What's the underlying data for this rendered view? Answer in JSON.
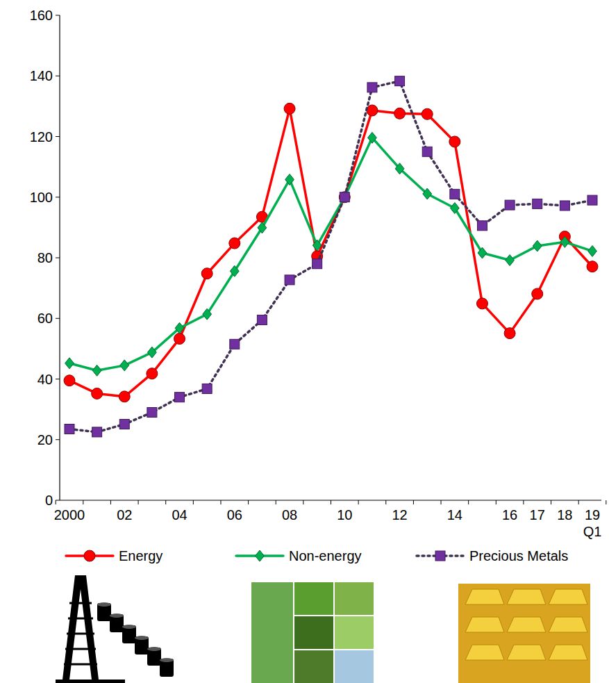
{
  "chart_data": {
    "type": "line",
    "categories": [
      "2000",
      null,
      "02",
      null,
      "04",
      null,
      "06",
      null,
      "08",
      null,
      "10",
      null,
      "12",
      null,
      "14",
      null,
      "16",
      "17",
      "18",
      "19\nQ1"
    ],
    "series": [
      {
        "name": "Energy",
        "color": "#ff0000",
        "marker": "circle",
        "line_style": "solid",
        "values": [
          39.5,
          35.2,
          34.2,
          41.8,
          53.3,
          74.8,
          84.8,
          93.5,
          129.2,
          80.5,
          100,
          128.6,
          127.6,
          127.4,
          118.3,
          64.9,
          55.1,
          68.1,
          87.0,
          77.1
        ]
      },
      {
        "name": "Non-energy",
        "color": "#00b050",
        "marker": "diamond",
        "line_style": "solid",
        "values": [
          45.2,
          42.8,
          44.5,
          48.8,
          56.8,
          61.4,
          75.6,
          89.9,
          105.8,
          84.1,
          100,
          119.6,
          109.4,
          101.1,
          96.4,
          81.6,
          79.2,
          83.9,
          85.2,
          82.2
        ]
      },
      {
        "name": "Precious Metals",
        "color": "#7030a0",
        "marker": "square",
        "line_style": "dotted",
        "values": [
          23.5,
          22.5,
          25.1,
          29.0,
          34.0,
          36.8,
          51.5,
          59.5,
          72.7,
          78.0,
          100,
          136.2,
          138.3,
          115.0,
          101.0,
          90.6,
          97.4,
          97.8,
          97.2,
          99.0
        ]
      }
    ],
    "ylim": [
      0,
      160
    ],
    "yticks": [
      0,
      20,
      40,
      60,
      80,
      100,
      120,
      140,
      160
    ],
    "grid": false,
    "legend": "bottom"
  }
}
